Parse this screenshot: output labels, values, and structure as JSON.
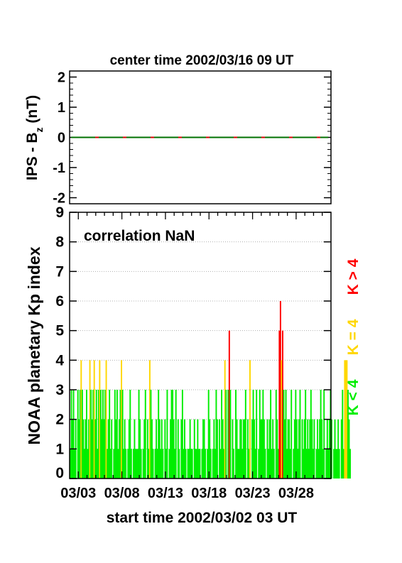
{
  "chart_data": [
    {
      "type": "line",
      "title": "center time 2002/03/16 09 UT",
      "ylabel_main": "IPS - B",
      "ylabel_sub": "z",
      "ylabel_unit": " (nT)",
      "ylim": [
        -2.2,
        2.2
      ],
      "yticks": [
        "-2",
        "-1",
        "0",
        "1",
        "2"
      ],
      "series": [
        {
          "color": "#d00000",
          "values": [
            0,
            0
          ]
        },
        {
          "color": "#007000",
          "dash": true,
          "values": [
            0,
            0
          ]
        }
      ]
    },
    {
      "type": "bar",
      "ylabel": "NOAA planetary Kp index",
      "annotation": "correlation NaN",
      "ylim": [
        0,
        9
      ],
      "yticks": [
        "0",
        "1",
        "2",
        "3",
        "4",
        "5",
        "6",
        "7",
        "8",
        "9"
      ],
      "xlim": [
        0,
        30
      ],
      "xticks": [
        "03/03",
        "03/08",
        "03/13",
        "03/18",
        "03/23",
        "03/28"
      ],
      "xlabel": "start time 2002/03/02 03 UT",
      "grid": true,
      "legend": [
        {
          "label": "K < 4",
          "color": "#00ee00"
        },
        {
          "label": "K = 4",
          "color": "#ffd700"
        },
        {
          "label": "K > 4",
          "color": "#ff0000"
        }
      ],
      "colors": {
        "low": "#00ee00",
        "mid": "#ffd700",
        "high": "#ff0000"
      },
      "bar_width_days": 0.125,
      "values": [
        1,
        3,
        2,
        3,
        1,
        2,
        0,
        3,
        2,
        3,
        4,
        3,
        2,
        1,
        2,
        3,
        1,
        2,
        4,
        3,
        2,
        3,
        4,
        2,
        3,
        1,
        3,
        4,
        3,
        2,
        3,
        2,
        3,
        4,
        1,
        2,
        3,
        1,
        2,
        0,
        1,
        3,
        2,
        3,
        1,
        2,
        3,
        4,
        3,
        1,
        2,
        1,
        0,
        1,
        2,
        3,
        1,
        0,
        1,
        2,
        1,
        1,
        1,
        3,
        2,
        1,
        0,
        1,
        2,
        3,
        0,
        2,
        1,
        4,
        3,
        2,
        1,
        0,
        1,
        2,
        1,
        3,
        2,
        1,
        2,
        1,
        0,
        2,
        1,
        3,
        0,
        1,
        2,
        3,
        3,
        2,
        1,
        3,
        0,
        2,
        1,
        0,
        2,
        3,
        1,
        2,
        1,
        0,
        1,
        1,
        2,
        1,
        1,
        0,
        2,
        1,
        1,
        2,
        1,
        1,
        0,
        1,
        2,
        2,
        1,
        0,
        1,
        3,
        2,
        1,
        0,
        1,
        2,
        1,
        3,
        2,
        0,
        2,
        1,
        3,
        2,
        1,
        4,
        3,
        0,
        3,
        5,
        3,
        0,
        2,
        1,
        0,
        3,
        2,
        1,
        1,
        2,
        2,
        1,
        2,
        2,
        3,
        0,
        2,
        1,
        4,
        0,
        2,
        3,
        2,
        1,
        3,
        0,
        1,
        3,
        2,
        2,
        3,
        2,
        1,
        0,
        2,
        1,
        2,
        3,
        1,
        2,
        1,
        0,
        3,
        2,
        1,
        5,
        6,
        4,
        5,
        3,
        2,
        3,
        1,
        2,
        2,
        1,
        3,
        0,
        1,
        2,
        3,
        2,
        1,
        2,
        3,
        0,
        2,
        1,
        2,
        3,
        1,
        2,
        1,
        2,
        3,
        2,
        1,
        2,
        0,
        1,
        2,
        1,
        2,
        3,
        2,
        1,
        3,
        0,
        1,
        2,
        1,
        2,
        3,
        2,
        0,
        1,
        2,
        1,
        1,
        2,
        1,
        0,
        2,
        3,
        1,
        4,
        4,
        4,
        3,
        2,
        1
      ]
    }
  ]
}
